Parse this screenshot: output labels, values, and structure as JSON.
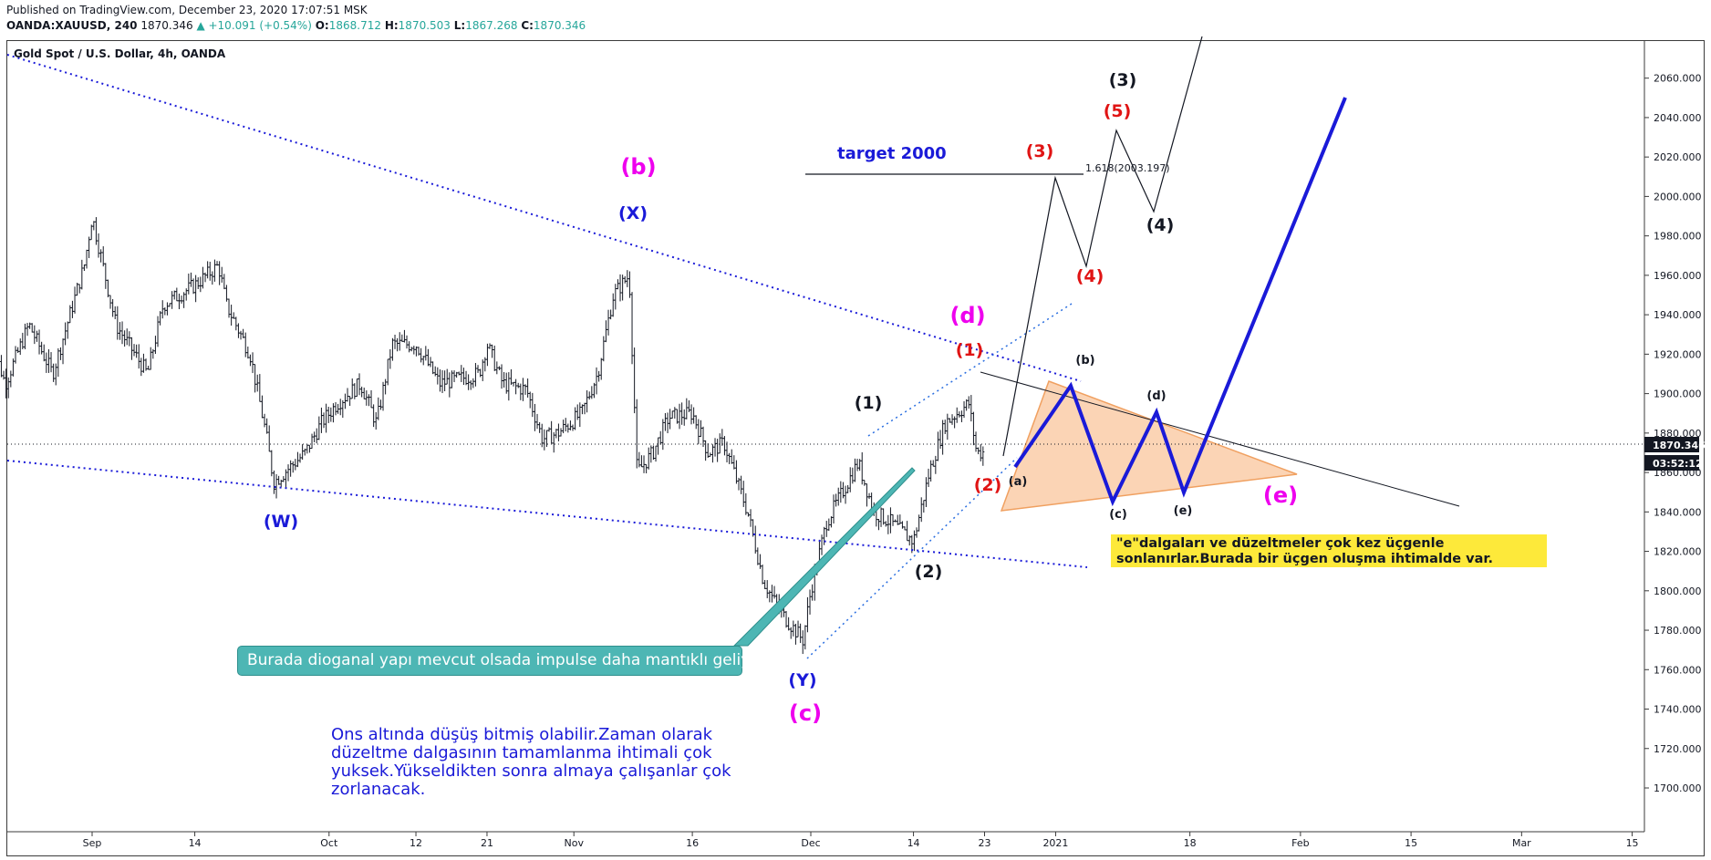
{
  "header": {
    "published": "Published on TradingView.com, December 23, 2020 17:07:51 MSK",
    "symbol": "OANDA:XAUUSD, 240",
    "last": "1870.346",
    "change": "▲ +10.091 (+0.54%)",
    "o_label": "O:",
    "o_value": "1868.712",
    "h_label": "H:",
    "h_value": "1870.503",
    "l_label": "L:",
    "l_value": "1867.268",
    "c_label": "C:",
    "c_value": "1870.346"
  },
  "chart_title": "Gold Spot / U.S. Dollar, 4h, OANDA",
  "price_label": {
    "value": "1870.346",
    "countdown": "03:52:12",
    "color": "#131722"
  },
  "annotations": {
    "teal_note": "Burada dioganal yapı mevcut olsada impulse daha mantıklı geliyor",
    "yellow_note": "\"e\"dalgaları ve düzeltmeler çok kez üçgenle sonlanırlar.Burada bir üçgen oluşma ihtimalde var.",
    "blue_note": [
      "Ons altında düşüş bitmiş olabilir.Zaman olarak",
      "düzeltme dalgasının tamamlanma ihtimali çok",
      "yuksek.Yükseldikten sonra almaya çalışanlar çok",
      "zorlanacak."
    ],
    "target": "target  2000",
    "fib": "1.618(2003.197)"
  },
  "wave_labels": [
    {
      "text": "(b)",
      "color": "#ee00ee"
    },
    {
      "text": "(X)",
      "color": "#1a1ad8"
    },
    {
      "text": "(W)",
      "color": "#1a1ad8"
    },
    {
      "text": "(Y)",
      "color": "#1a1ad8"
    },
    {
      "text": "(c)",
      "color": "#ee00ee"
    },
    {
      "text": "(d)",
      "color": "#ee00ee"
    },
    {
      "text": "(e)",
      "color": "#ee00ee"
    },
    {
      "text": "(1)",
      "color": "#131722"
    },
    {
      "text": "(2)",
      "color": "#131722"
    },
    {
      "text": "(1)",
      "color": "#e01414"
    },
    {
      "text": "(2)",
      "color": "#e01414"
    },
    {
      "text": "(3)",
      "color": "#e01414"
    },
    {
      "text": "(4)",
      "color": "#e01414"
    },
    {
      "text": "(5)",
      "color": "#e01414"
    },
    {
      "text": "(3)",
      "color": "#131722"
    },
    {
      "text": "(4)",
      "color": "#131722"
    },
    {
      "text": "(a)",
      "color": "#131722"
    },
    {
      "text": "(b)",
      "color": "#131722"
    },
    {
      "text": "(c)",
      "color": "#131722"
    },
    {
      "text": "(d)",
      "color": "#131722"
    },
    {
      "text": "(e)",
      "color": "#131722"
    }
  ],
  "colors": {
    "blue": "#1a1ad8",
    "magenta": "#ee00ee",
    "red": "#e01414",
    "teal": "#4db6b4",
    "triangle": "#f8b884",
    "bar": "#131722"
  },
  "chart_data": {
    "type": "ohlc",
    "title": "Gold Spot / U.S. Dollar, 4h, OANDA",
    "ylim": [
      1680,
      2070
    ],
    "y_ticks": [
      1700,
      1720,
      1740,
      1760,
      1780,
      1800,
      1820,
      1840,
      1860,
      1880,
      1900,
      1920,
      1940,
      1960,
      1980,
      2000,
      2020,
      2040,
      2060
    ],
    "y_tick_labels": [
      "1700.000",
      "1720.000",
      "1740.000",
      "1760.000",
      "1780.000",
      "1800.000",
      "1820.000",
      "1840.000",
      "1860.000",
      "1880.000",
      "1900.000",
      "1920.000",
      "1940.000",
      "1960.000",
      "1980.000",
      "2000.000",
      "2020.000",
      "2040.000",
      "2060.000"
    ],
    "x_ticks": [
      "Sep",
      "14",
      "Oct",
      "12",
      "21",
      "Nov",
      "16",
      "Dec",
      "14",
      "23",
      "2021",
      "18",
      "Feb",
      "15",
      "Mar",
      "15"
    ],
    "x_tick_dates": [
      "2020-09-01",
      "2020-09-14",
      "2020-10-01",
      "2020-10-12",
      "2020-10-21",
      "2020-11-01",
      "2020-11-16",
      "2020-12-01",
      "2020-12-14",
      "2020-12-23",
      "2021-01-01",
      "2021-01-18",
      "2021-02-01",
      "2021-02-15",
      "2021-03-01",
      "2021-03-15"
    ],
    "price_path": [
      [
        "2020-08-19",
        1930
      ],
      [
        "2020-08-21",
        1905
      ],
      [
        "2020-08-24",
        1935
      ],
      [
        "2020-08-27",
        1910
      ],
      [
        "2020-08-31",
        1965
      ],
      [
        "2020-09-01",
        1990
      ],
      [
        "2020-09-04",
        1935
      ],
      [
        "2020-09-08",
        1910
      ],
      [
        "2020-09-10",
        1945
      ],
      [
        "2020-09-14",
        1955
      ],
      [
        "2020-09-17",
        1965
      ],
      [
        "2020-09-18",
        1945
      ],
      [
        "2020-09-21",
        1920
      ],
      [
        "2020-09-23",
        1880
      ],
      [
        "2020-09-24",
        1855
      ],
      [
        "2020-09-28",
        1870
      ],
      [
        "2020-09-30",
        1885
      ],
      [
        "2020-10-02",
        1895
      ],
      [
        "2020-10-05",
        1905
      ],
      [
        "2020-10-07",
        1885
      ],
      [
        "2020-10-09",
        1925
      ],
      [
        "2020-10-12",
        1925
      ],
      [
        "2020-10-15",
        1905
      ],
      [
        "2020-10-20",
        1910
      ],
      [
        "2020-10-21",
        1925
      ],
      [
        "2020-10-23",
        1905
      ],
      [
        "2020-10-26",
        1902
      ],
      [
        "2020-10-28",
        1877
      ],
      [
        "2020-10-30",
        1880
      ],
      [
        "2020-11-02",
        1890
      ],
      [
        "2020-11-04",
        1910
      ],
      [
        "2020-11-06",
        1950
      ],
      [
        "2020-11-08",
        1960
      ],
      [
        "2020-11-09",
        1860
      ],
      [
        "2020-11-11",
        1870
      ],
      [
        "2020-11-13",
        1888
      ],
      [
        "2020-11-16",
        1890
      ],
      [
        "2020-11-18",
        1870
      ],
      [
        "2020-11-20",
        1875
      ],
      [
        "2020-11-23",
        1840
      ],
      [
        "2020-11-25",
        1805
      ],
      [
        "2020-11-27",
        1790
      ],
      [
        "2020-11-30",
        1775
      ],
      [
        "2020-12-01",
        1800
      ],
      [
        "2020-12-03",
        1835
      ],
      [
        "2020-12-07",
        1865
      ],
      [
        "2020-12-09",
        1840
      ],
      [
        "2020-12-11",
        1835
      ],
      [
        "2020-12-14",
        1825
      ],
      [
        "2020-12-16",
        1860
      ],
      [
        "2020-12-18",
        1885
      ],
      [
        "2020-12-21",
        1895
      ],
      [
        "2020-12-22",
        1870
      ],
      [
        "2020-12-23",
        1870.346
      ]
    ]
  }
}
